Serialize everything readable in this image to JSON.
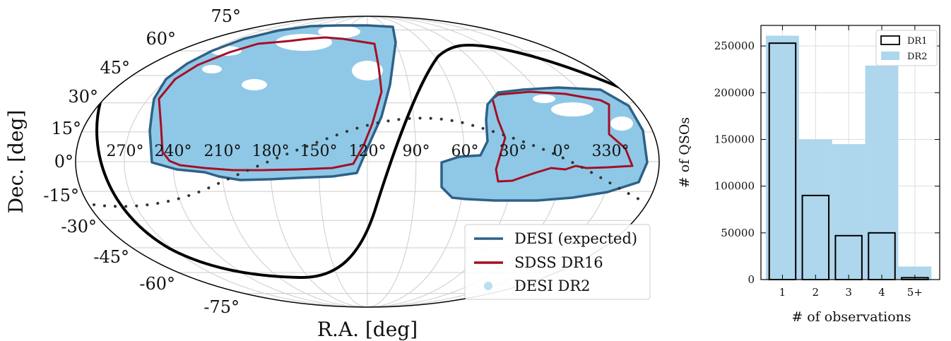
{
  "colors": {
    "desi_expected": "#2e6187",
    "sdss_dr16": "#a50f26",
    "desi_dr2_fill": "#8fc8e6",
    "dr1_edge": "#000000",
    "dr2_bar": "#aed6ec"
  },
  "chart_data": [
    {
      "type": "area",
      "subtype": "mollweide-sky-map",
      "xlabel": "R.A. [deg]",
      "ylabel": "Dec. [deg]",
      "ra_tick_labels": [
        "270°",
        "240°",
        "210°",
        "180°",
        "150°",
        "120°",
        "90°",
        "60°",
        "30°",
        "0°",
        "330°"
      ],
      "dec_tick_labels_left": [
        "75°",
        "60°",
        "45°",
        "30°",
        "15°",
        "0°",
        "-15°",
        "-30°",
        "-45°",
        "-60°",
        "-75°"
      ],
      "grid": true,
      "legend": {
        "placement": "bottom-right",
        "entries": [
          "DESI (expected)",
          "SDSS DR16",
          "DESI DR2"
        ]
      },
      "series": [
        {
          "name": "DESI (expected)",
          "kind": "footprint outline"
        },
        {
          "name": "SDSS DR16",
          "kind": "footprint outline"
        },
        {
          "name": "DESI DR2",
          "kind": "observed QSO positions (filled)"
        }
      ],
      "extra_lines": [
        "Galactic plane (solid black)",
        "Ecliptic (dotted)"
      ]
    },
    {
      "type": "bar",
      "categories": [
        "1",
        "2",
        "3",
        "4",
        "5+"
      ],
      "series": [
        {
          "name": "DR1",
          "values": [
            253000,
            90000,
            47000,
            50000,
            2000
          ]
        },
        {
          "name": "DR2",
          "values": [
            261000,
            150000,
            145000,
            229000,
            14000
          ]
        }
      ],
      "xlabel": "# of observations",
      "ylabel": "# of QSOs",
      "ylim": [
        0,
        272000
      ],
      "yticks": [
        0,
        50000,
        100000,
        150000,
        200000,
        250000
      ],
      "grid": true,
      "legend": {
        "placement": "top-right",
        "entries": [
          "DR1",
          "DR2"
        ]
      }
    }
  ]
}
